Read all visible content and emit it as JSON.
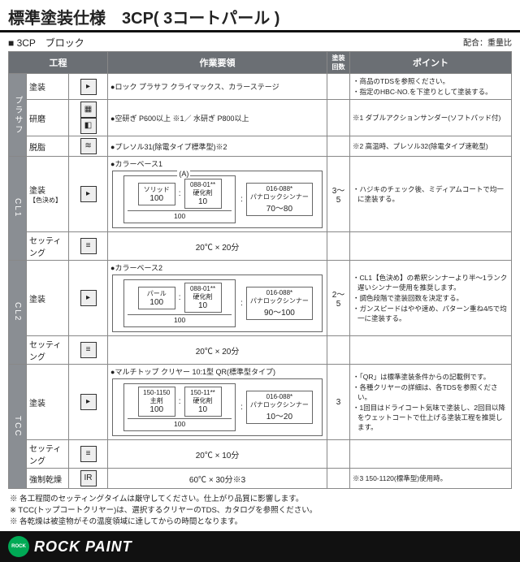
{
  "title": "標準塗装仕様　3CP( 3コートパール )",
  "sub": {
    "block": "3CP　ブロック",
    "mix": "配合：重量比"
  },
  "headers": {
    "proc": "工程",
    "work": "作業要領",
    "count": "塗装\n回数",
    "point": "ポイント"
  },
  "stages": [
    {
      "name": "プラサフ",
      "rows": [
        {
          "proc": "塗装",
          "icons": [
            "▸"
          ],
          "work": "ロック プラサフ クライマックス、カラーステージ",
          "count": "",
          "points": [
            "商品のTDSを参照ください。",
            "指定のHBC-NO.を下塗りとして塗装する。"
          ]
        },
        {
          "proc": "研磨",
          "icons": [
            "▦",
            "◧"
          ],
          "work": "空研ぎ P600以上 ※1／ 水研ぎ P800以上",
          "count": "",
          "points_raw": "※1 ダブルアクションサンダー(ソフトパッド付)"
        },
        {
          "proc": "脱脂",
          "icons": [
            "≋"
          ],
          "work_b": "プレソル31(除電タイプ標準型)※2",
          "count": "",
          "points_raw": "※2 高温時、プレソル32(除電タイプ速乾型)"
        }
      ]
    },
    {
      "name": "CL1",
      "rows": [
        {
          "proc": "塗装",
          "proc_sub": "【色決め】",
          "icons": [
            "▸"
          ],
          "work_b": "カラーベース1",
          "diagram": {
            "label": "(A)",
            "boxes": [
              {
                "n": "ソリッド",
                "v": "100"
              },
              {
                "n": "088-01**\n硬化剤",
                "v": "10"
              }
            ],
            "under": "100",
            "rbox": {
              "n": "016-088*\nパナロックシンナー",
              "v": "70～80"
            }
          },
          "count": "3～5",
          "points": [
            "ハジキのチェック後、ミディアムコートで均一に塗装する。"
          ]
        },
        {
          "proc": "セッティング",
          "icons": [
            "≡"
          ],
          "work_c": "20℃ × 20分",
          "count": "",
          "points": []
        }
      ]
    },
    {
      "name": "CL2",
      "rows": [
        {
          "proc": "塗装",
          "icons": [
            "▸"
          ],
          "work_b": "カラーベース2",
          "diagram": {
            "boxes": [
              {
                "n": "パール",
                "v": "100"
              },
              {
                "n": "088-01**\n硬化剤",
                "v": "10"
              }
            ],
            "under": "100",
            "rbox": {
              "n": "016-088*\nパナロックシンナー",
              "v": "90～100"
            }
          },
          "count": "2～5",
          "points": [
            "CL1【色決め】の希釈シンナーより半～1ランク遅いシンナー使用を推奨します。",
            "調色段階で塗装回数を決定する。",
            "ガンスピードはやや速め、パターン重ね4/5で均一に塗装する。"
          ]
        },
        {
          "proc": "セッティング",
          "icons": [
            "≡"
          ],
          "work_c": "20℃ × 20分",
          "count": "",
          "points": []
        }
      ]
    },
    {
      "name": "TCC",
      "rows": [
        {
          "proc": "塗装",
          "icons": [
            "▸"
          ],
          "work_b": "マルチトップ クリヤー 10:1型 QR(標準型タイプ)",
          "diagram": {
            "boxes": [
              {
                "n": "150-1150\n主剤",
                "v": "100"
              },
              {
                "n": "150-11**\n硬化剤",
                "v": "10"
              }
            ],
            "under": "100",
            "rbox": {
              "n": "016-088*\nパナロックシンナー",
              "v": "10～20"
            }
          },
          "count": "3",
          "points": [
            "「QR」は標準塗装条件からの記載例です。",
            "各種クリヤーの詳細は、各TDSを参照ください。",
            "1回目はドライコート気味で塗装し、2回目以降をウェットコートで仕上げる塗装工程を推奨します。"
          ]
        },
        {
          "proc": "セッティング",
          "icons": [
            "≡"
          ],
          "work_c": "20℃ × 10分",
          "count": "",
          "points": []
        },
        {
          "proc": "強制乾燥",
          "icons": [
            "IR"
          ],
          "work_c": "60℃ × 30分※3",
          "count": "",
          "points_raw": "※3 150-1120(標準型)使用時。"
        }
      ]
    }
  ],
  "notes": [
    "※ 各工程間のセッティングタイムは厳守してください。仕上がり品質に影響します。",
    "※ TCC(トップコートクリヤー)は、選択するクリヤーのTDS、カタログを参照ください。",
    "※ 各乾燥は被塗物がその温度領域に達してからの時間となります。"
  ],
  "brand": "ROCK PAINT",
  "logo": "ROCK"
}
